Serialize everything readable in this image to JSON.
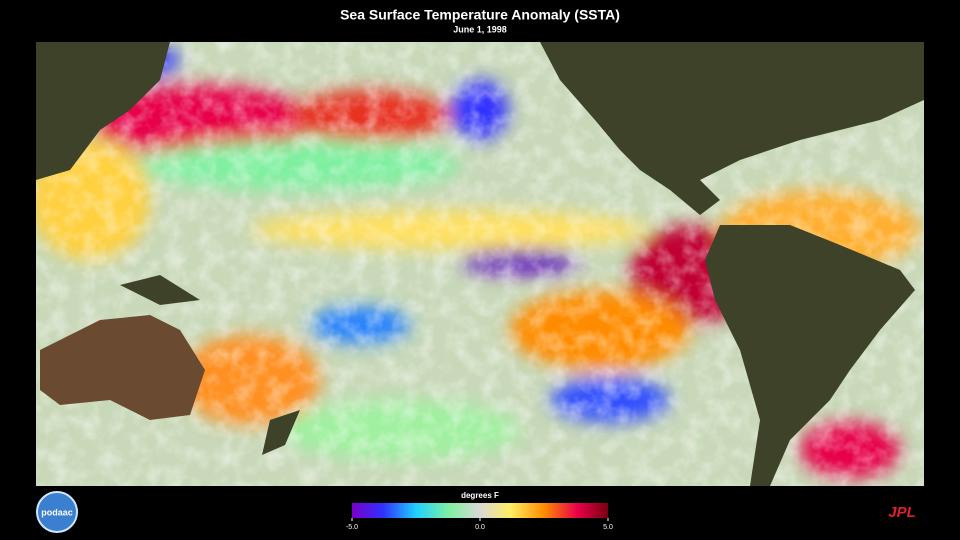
{
  "header": {
    "title": "Sea Surface Temperature Anomaly (SSTA)",
    "subtitle": "June 1, 1998"
  },
  "colorbar": {
    "label": "degrees F",
    "lim": [
      -5,
      5
    ],
    "ticks": [
      {
        "value": -5,
        "label": "-5.0"
      },
      {
        "value": 0,
        "label": "0.0"
      },
      {
        "value": 5,
        "label": "5.0"
      }
    ]
  },
  "logos": {
    "left": "podaac",
    "right": "JPL"
  }
}
